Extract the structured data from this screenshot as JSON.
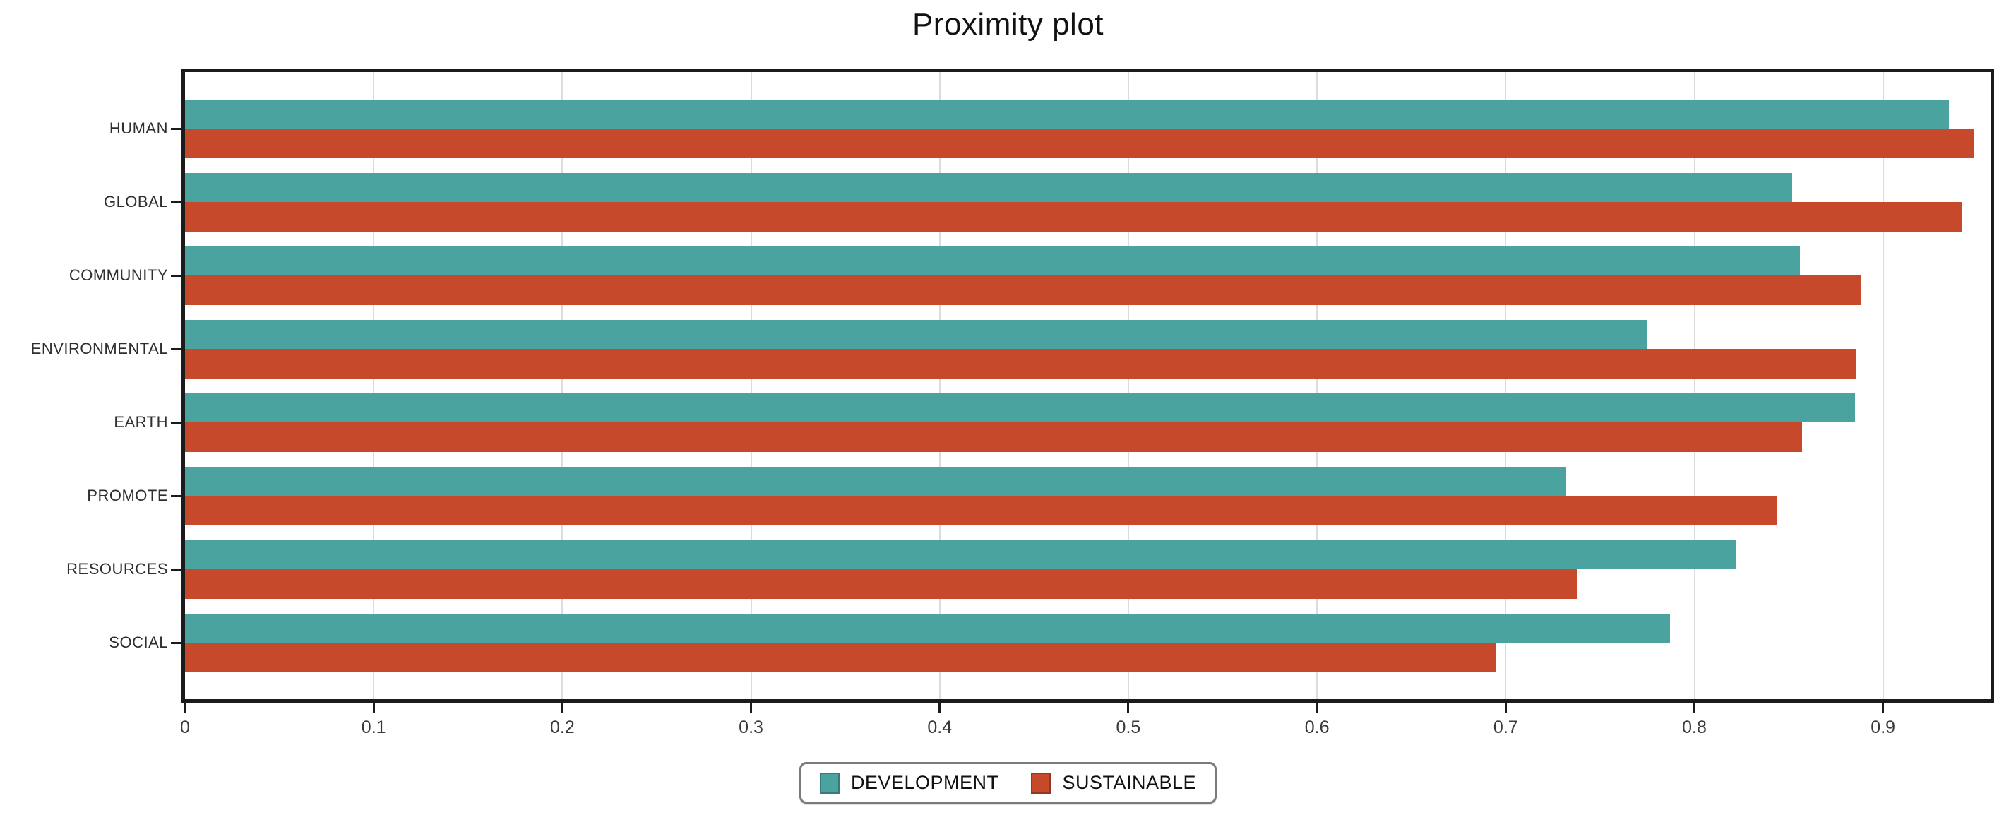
{
  "title": "Proximity plot",
  "colors": {
    "development": "#4BA3A0",
    "sustainable": "#C6492C",
    "frame": "#1b1b1b",
    "gridline": "#dcdcdc"
  },
  "chart_data": {
    "type": "bar",
    "orientation": "horizontal",
    "title": "Proximity plot",
    "categories": [
      "HUMAN",
      "GLOBAL",
      "COMMUNITY",
      "ENVIRONMENTAL",
      "EARTH",
      "PROMOTE",
      "RESOURCES",
      "SOCIAL"
    ],
    "series": [
      {
        "name": "DEVELOPMENT",
        "color": "#4BA3A0",
        "values": [
          0.935,
          0.852,
          0.856,
          0.775,
          0.885,
          0.732,
          0.822,
          0.787
        ]
      },
      {
        "name": "SUSTAINABLE",
        "color": "#C6492C",
        "values": [
          0.948,
          0.942,
          0.888,
          0.886,
          0.857,
          0.844,
          0.738,
          0.695
        ]
      }
    ],
    "xlabel": "",
    "ylabel": "",
    "x_tick_labels": [
      "0",
      "0.1",
      "0.2",
      "0.3",
      "0.4",
      "0.5",
      "0.6",
      "0.7",
      "0.8",
      "0.9"
    ],
    "xlim": [
      0,
      0.957
    ],
    "grid": "vertical",
    "legend_position": "bottom-center"
  }
}
